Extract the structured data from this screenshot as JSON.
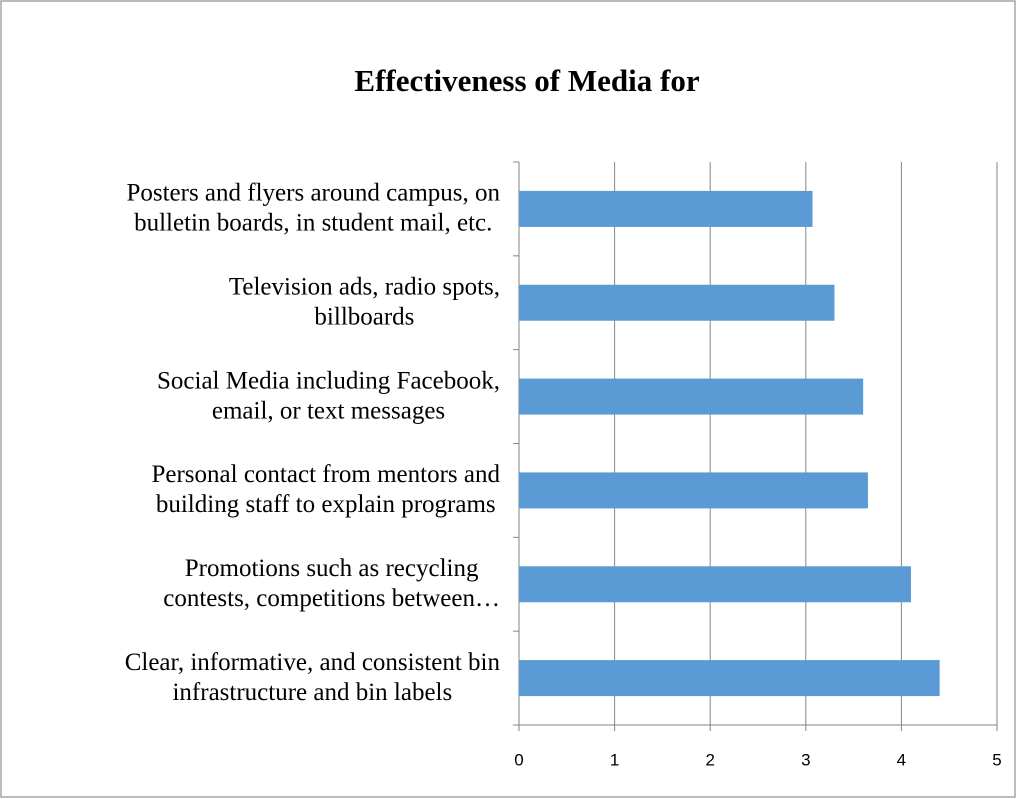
{
  "chart_data": {
    "type": "bar",
    "orientation": "horizontal",
    "title": "Effectiveness of Media for",
    "categories": [
      [
        "Posters and flyers around campus, on",
        "bulletin boards, in student mail, etc."
      ],
      [
        "Television ads, radio spots,",
        "billboards"
      ],
      [
        "Social Media including Facebook,",
        "email, or text messages"
      ],
      [
        "Personal contact from mentors and",
        "building staff to explain programs"
      ],
      [
        "Promotions such as recycling",
        "contests, competitions between…"
      ],
      [
        "Clear, informative, and consistent bin",
        "infrastructure and bin labels"
      ]
    ],
    "values": [
      3.07,
      3.3,
      3.6,
      3.65,
      4.1,
      4.4
    ],
    "color": "#5b9bd5",
    "xlim": [
      0,
      5
    ],
    "xticks": [
      0,
      1,
      2,
      3,
      4,
      5
    ],
    "grid": true
  }
}
